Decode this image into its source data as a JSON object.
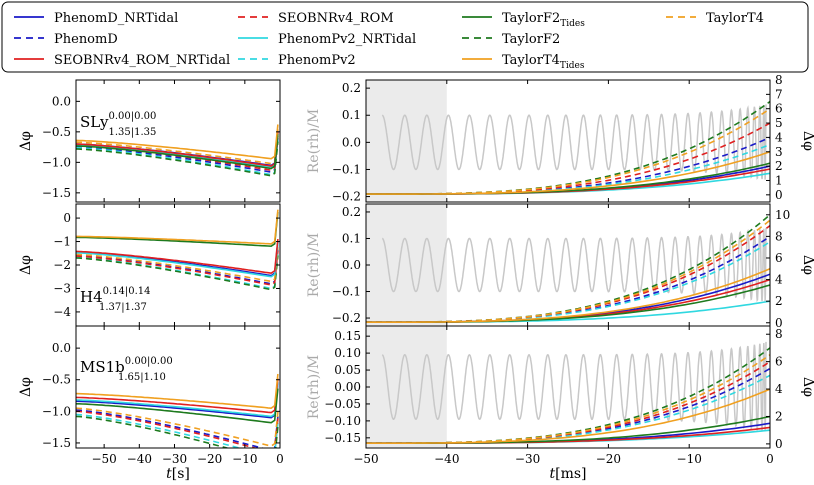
{
  "legend": [
    {
      "id": "phenomd_nrtidal",
      "label": "PhenomD_NRTidal",
      "color": "#1a1ac8",
      "dash": false
    },
    {
      "id": "phenomd",
      "label": "PhenomD",
      "color": "#1a1ac8",
      "dash": true
    },
    {
      "id": "seob_nrtidal",
      "label": "SEOBNRv4_ROM_NRTidal",
      "color": "#e02020",
      "dash": false
    },
    {
      "id": "seob",
      "label": "SEOBNRv4_ROM",
      "color": "#e02020",
      "dash": true
    },
    {
      "id": "pv2_nrtidal",
      "label": "PhenomPv2_NRTidal",
      "color": "#30d8e0",
      "dash": false
    },
    {
      "id": "pv2",
      "label": "PhenomPv2",
      "color": "#30d8e0",
      "dash": true
    },
    {
      "id": "tf2_tides",
      "label": "TaylorF2",
      "sub": "Tides",
      "color": "#1e7a1e",
      "dash": false
    },
    {
      "id": "tf2",
      "label": "TaylorF2",
      "color": "#1e7a1e",
      "dash": true
    },
    {
      "id": "tt4_tides",
      "label": "TaylorT4",
      "sub": "Tides",
      "color": "#f0a020",
      "dash": false
    },
    {
      "id": "tt4",
      "label": "TaylorT4",
      "color": "#f0a020",
      "dash": true
    }
  ],
  "left_axis_label": "Δφ",
  "left_xlabel": {
    "var": "t",
    "unit": "[s]"
  },
  "right_xlabel": {
    "var": "t",
    "unit": "[ms]"
  },
  "right_left_label": "Re(rh)/M",
  "right_right_label": "Δφ",
  "panels": [
    {
      "label_main": "SLy",
      "sup": "0.00|0.00",
      "sub": "1.35|1.35"
    },
    {
      "label_main": "H4",
      "sup": "0.14|0.14",
      "sub": "1.37|1.37"
    },
    {
      "label_main": "MS1b",
      "sup": "0.00|0.00",
      "sub": "1.65|1.10"
    }
  ],
  "chart_data": [
    {
      "type": "line",
      "panel": "left-SLy",
      "xlim": [
        -58,
        0
      ],
      "ylim": [
        -1.65,
        0.35
      ],
      "xticks": [
        -50,
        -40,
        -30,
        -20,
        -10,
        0
      ],
      "yticks": [
        -1.5,
        -1.0,
        -0.5,
        0.0
      ],
      "ytick_labels": [
        "−1.5",
        "−1.0",
        "−0.5",
        "0.0"
      ],
      "series": [
        {
          "name": "PhenomD_NRTidal",
          "start": -0.7,
          "end": -1.05
        },
        {
          "name": "PhenomD",
          "start": -0.74,
          "end": -1.16
        },
        {
          "name": "SEOBNRv4_ROM_NRTidal",
          "start": -0.7,
          "end": -1.06
        },
        {
          "name": "SEOBNRv4_ROM",
          "start": -0.72,
          "end": -1.13
        },
        {
          "name": "PhenomPv2_NRTidal",
          "start": -0.71,
          "end": -1.08
        },
        {
          "name": "PhenomPv2",
          "start": -0.76,
          "end": -1.2
        },
        {
          "name": "TaylorF2_Tides",
          "start": -0.73,
          "end": -1.1
        },
        {
          "name": "TaylorF2",
          "start": -0.78,
          "end": -1.22
        },
        {
          "name": "TaylorT4_Tides",
          "start": -0.64,
          "end": -0.94
        },
        {
          "name": "TaylorT4",
          "start": -0.67,
          "end": -1.02
        }
      ]
    },
    {
      "type": "line",
      "panel": "left-H4",
      "xlim": [
        -58,
        0
      ],
      "ylim": [
        -4.6,
        0.6
      ],
      "xticks": [
        -50,
        -40,
        -30,
        -20,
        -10,
        0
      ],
      "yticks": [
        -4,
        -3,
        -2,
        -1,
        0
      ],
      "ytick_labels": [
        "−4",
        "−3",
        "−2",
        "−1",
        "0"
      ],
      "series": [
        {
          "name": "PhenomD_NRTidal",
          "start": -1.45,
          "end": -2.45
        },
        {
          "name": "PhenomD",
          "start": -1.6,
          "end": -2.8
        },
        {
          "name": "SEOBNRv4_ROM_NRTidal",
          "start": -1.42,
          "end": -2.35
        },
        {
          "name": "SEOBNRv4_ROM",
          "start": -1.62,
          "end": -2.85
        },
        {
          "name": "PhenomPv2_NRTidal",
          "start": -1.48,
          "end": -2.5
        },
        {
          "name": "PhenomPv2",
          "start": -1.68,
          "end": -3.0
        },
        {
          "name": "TaylorF2_Tides",
          "start": -0.82,
          "end": -1.2
        },
        {
          "name": "TaylorF2",
          "start": -1.7,
          "end": -3.05
        },
        {
          "name": "TaylorT4_Tides",
          "start": -0.78,
          "end": -1.1
        },
        {
          "name": "TaylorT4",
          "start": -1.55,
          "end": -2.7
        }
      ]
    },
    {
      "type": "line",
      "panel": "left-MS1b",
      "xlim": [
        -58,
        0
      ],
      "ylim": [
        -1.58,
        0.35
      ],
      "xticks": [
        -50,
        -40,
        -30,
        -20,
        -10,
        0
      ],
      "xtick_labels": [
        "−50",
        "−40",
        "−30",
        "−20",
        "−10",
        "0"
      ],
      "yticks": [
        -1.5,
        -1.0,
        -0.5,
        0.0
      ],
      "ytick_labels": [
        "−1.5",
        "−1.0",
        "−0.5",
        "0.0"
      ],
      "series": [
        {
          "name": "PhenomD_NRTidal",
          "start": -0.84,
          "end": -1.1
        },
        {
          "name": "PhenomD",
          "start": -0.98,
          "end": -1.62
        },
        {
          "name": "SEOBNRv4_ROM_NRTidal",
          "start": -0.78,
          "end": -1.02
        },
        {
          "name": "SEOBNRv4_ROM",
          "start": -1.0,
          "end": -1.65
        },
        {
          "name": "PhenomPv2_NRTidal",
          "start": -0.82,
          "end": -1.08
        },
        {
          "name": "PhenomPv2",
          "start": -1.05,
          "end": -1.72
        },
        {
          "name": "TaylorF2_Tides",
          "start": -0.88,
          "end": -1.18
        },
        {
          "name": "TaylorF2",
          "start": -1.08,
          "end": -1.78
        },
        {
          "name": "TaylorT4_Tides",
          "start": -0.72,
          "end": -0.95
        },
        {
          "name": "TaylorT4",
          "start": -0.95,
          "end": -1.55
        }
      ]
    },
    {
      "type": "line",
      "panel": "right-SLy",
      "xlim": [
        -50,
        0
      ],
      "ylim_left": [
        -0.22,
        0.23
      ],
      "ylim_right": [
        -0.5,
        8
      ],
      "shaded_x": [
        -50,
        -40
      ],
      "yticks_left": [
        -0.2,
        -0.1,
        0.0,
        0.1,
        0.2
      ],
      "ytick_labels_left": [
        "−0.2",
        "−0.1",
        "0.0",
        "0.1",
        "0.2"
      ],
      "yticks_right": [
        0,
        1,
        2,
        3,
        4,
        5,
        6,
        7,
        8
      ],
      "waveform": {
        "amplitude": 0.1,
        "cycles": 27
      },
      "series_end": [
        {
          "name": "PhenomD_NRTidal",
          "end": 2.0
        },
        {
          "name": "PhenomD",
          "end": 4.0
        },
        {
          "name": "SEOBNRv4_ROM_NRTidal",
          "end": 1.8
        },
        {
          "name": "SEOBNRv4_ROM",
          "end": 5.0
        },
        {
          "name": "PhenomPv2_NRTidal",
          "end": 1.5
        },
        {
          "name": "PhenomPv2",
          "end": 3.5
        },
        {
          "name": "TaylorF2_Tides",
          "end": 2.2
        },
        {
          "name": "TaylorF2",
          "end": 6.5
        },
        {
          "name": "TaylorT4_Tides",
          "end": 3.0
        },
        {
          "name": "TaylorT4",
          "end": 6.0
        }
      ]
    },
    {
      "type": "line",
      "panel": "right-H4",
      "xlim": [
        -50,
        0
      ],
      "ylim_left": [
        -0.23,
        0.23
      ],
      "ylim_right": [
        -0.3,
        11
      ],
      "shaded_x": [
        -50,
        -40
      ],
      "yticks_left": [
        -0.2,
        -0.1,
        0.0,
        0.1,
        0.2
      ],
      "ytick_labels_left": [
        "−0.2",
        "−0.1",
        "0.0",
        "0.1",
        "0.2"
      ],
      "yticks_right": [
        0,
        2,
        4,
        6,
        8,
        10
      ],
      "waveform": {
        "amplitude": 0.1,
        "cycles": 27
      },
      "series_end": [
        {
          "name": "PhenomD_NRTidal",
          "end": 4.5
        },
        {
          "name": "PhenomD",
          "end": 8.0
        },
        {
          "name": "SEOBNRv4_ROM_NRTidal",
          "end": 4.0
        },
        {
          "name": "SEOBNRv4_ROM",
          "end": 9.0
        },
        {
          "name": "PhenomPv2_NRTidal",
          "end": 2.0
        },
        {
          "name": "PhenomPv2",
          "end": 7.5
        },
        {
          "name": "TaylorF2_Tides",
          "end": 3.5
        },
        {
          "name": "TaylorF2",
          "end": 10.0
        },
        {
          "name": "TaylorT4_Tides",
          "end": 5.0
        },
        {
          "name": "TaylorT4",
          "end": 9.5
        }
      ]
    },
    {
      "type": "line",
      "panel": "right-MS1b",
      "xlim": [
        -50,
        0
      ],
      "xticks": [
        -50,
        -40,
        -30,
        -20,
        -10,
        0
      ],
      "xtick_labels": [
        "−50",
        "−40",
        "−30",
        "−20",
        "−10",
        "0"
      ],
      "ylim_left": [
        -0.18,
        0.18
      ],
      "ylim_right": [
        -0.3,
        8.6
      ],
      "shaded_x": [
        -50,
        -40
      ],
      "yticks_left": [
        -0.15,
        -0.1,
        -0.05,
        0.0,
        0.05,
        0.1,
        0.15
      ],
      "ytick_labels_left": [
        "−0.15",
        "−0.10",
        "−0.05",
        "0.00",
        "0.05",
        "0.10",
        "0.15"
      ],
      "yticks_right": [
        0,
        2,
        4,
        6,
        8
      ],
      "waveform": {
        "amplitude": 0.095,
        "cycles": 27
      },
      "series_end": [
        {
          "name": "PhenomD_NRTidal",
          "end": 1.5
        },
        {
          "name": "PhenomD",
          "end": 5.5
        },
        {
          "name": "SEOBNRv4_ROM_NRTidal",
          "end": 1.2
        },
        {
          "name": "SEOBNRv4_ROM",
          "end": 6.0
        },
        {
          "name": "PhenomPv2_NRTidal",
          "end": 1.0
        },
        {
          "name": "PhenomPv2",
          "end": 5.0
        },
        {
          "name": "TaylorF2_Tides",
          "end": 2.0
        },
        {
          "name": "TaylorF2",
          "end": 7.0
        },
        {
          "name": "TaylorT4_Tides",
          "end": 4.0
        },
        {
          "name": "TaylorT4",
          "end": 6.5
        }
      ]
    }
  ]
}
